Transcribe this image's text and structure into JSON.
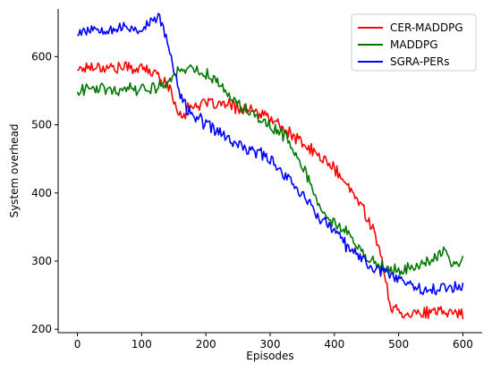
{
  "chart_data": {
    "type": "line",
    "title": "",
    "xlabel": "Episodes",
    "ylabel": "System overhead",
    "xlim": [
      -30,
      630
    ],
    "ylim": [
      195,
      670
    ],
    "xticks": [
      0,
      100,
      200,
      300,
      400,
      500,
      600
    ],
    "yticks": [
      200,
      300,
      400,
      500,
      600
    ],
    "grid": false,
    "legend_position": "top-right",
    "colors": {
      "CER-MADDPG": "#ff0000",
      "MADDPG": "#007700",
      "SGRA-PERs": "#0000ff"
    },
    "series": [
      {
        "name": "CER-MADDPG",
        "color": "#ff0000",
        "x": [
          0,
          20,
          40,
          60,
          80,
          100,
          120,
          130,
          140,
          150,
          160,
          170,
          180,
          200,
          220,
          240,
          260,
          280,
          300,
          320,
          340,
          360,
          380,
          400,
          420,
          440,
          460,
          470,
          480,
          485,
          490,
          500,
          520,
          540,
          560,
          580,
          600
        ],
        "values": [
          582,
          586,
          585,
          584,
          584,
          583,
          575,
          570,
          560,
          535,
          515,
          520,
          530,
          530,
          530,
          528,
          523,
          517,
          510,
          495,
          480,
          465,
          452,
          435,
          410,
          385,
          350,
          315,
          270,
          245,
          232,
          225,
          224,
          224,
          224,
          225,
          224
        ]
      },
      {
        "name": "MADDPG",
        "color": "#007700",
        "x": [
          0,
          20,
          40,
          60,
          80,
          100,
          120,
          140,
          150,
          160,
          170,
          180,
          200,
          220,
          240,
          260,
          280,
          300,
          320,
          340,
          350,
          360,
          370,
          380,
          390,
          400,
          420,
          440,
          460,
          480,
          500,
          520,
          540,
          560,
          570,
          580,
          600
        ],
        "values": [
          552,
          553,
          555,
          552,
          555,
          553,
          555,
          560,
          575,
          583,
          582,
          580,
          575,
          562,
          540,
          525,
          510,
          497,
          485,
          460,
          440,
          420,
          395,
          372,
          360,
          355,
          340,
          315,
          300,
          288,
          285,
          293,
          297,
          305,
          318,
          300,
          300
        ]
      },
      {
        "name": "SGRA-PERs",
        "color": "#0000ff",
        "x": [
          0,
          20,
          40,
          60,
          80,
          100,
          115,
          125,
          135,
          145,
          155,
          165,
          180,
          200,
          220,
          240,
          260,
          280,
          300,
          320,
          340,
          360,
          380,
          400,
          420,
          440,
          460,
          480,
          500,
          520,
          540,
          560,
          580,
          600
        ],
        "values": [
          637,
          641,
          642,
          641,
          642,
          640,
          650,
          660,
          640,
          600,
          560,
          530,
          515,
          500,
          490,
          475,
          465,
          460,
          450,
          430,
          410,
          385,
          360,
          345,
          320,
          305,
          290,
          285,
          275,
          265,
          260,
          258,
          262,
          265
        ]
      }
    ]
  }
}
